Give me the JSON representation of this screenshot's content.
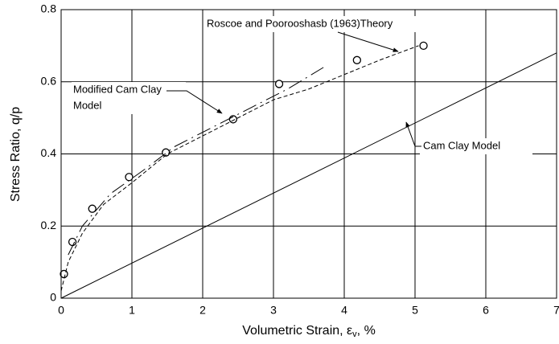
{
  "chart_data": {
    "type": "line",
    "x_label": [
      "Volumetric Strain, ε",
      "v",
      ", %"
    ],
    "y_label": "Stress Ratio, q/p",
    "xlim": [
      0,
      7
    ],
    "xticks": [
      0,
      1,
      2,
      3,
      4,
      5,
      6,
      7
    ],
    "ylim": [
      0,
      0.8
    ],
    "yticks": [
      0,
      0.2,
      0.4,
      0.6,
      0.8
    ],
    "grid": true,
    "color": "#000000",
    "series": [
      {
        "style": "markers",
        "x": [
          0.04,
          0.16,
          0.44,
          0.96,
          1.48,
          2.43,
          3.08,
          4.18,
          5.12
        ],
        "values": [
          0.067,
          0.156,
          0.248,
          0.336,
          0.404,
          0.496,
          0.594,
          0.66,
          0.7
        ]
      },
      {
        "style": "short-dash",
        "x": [
          0,
          0.1,
          0.3,
          0.6,
          1,
          1.5,
          2,
          2.5,
          3,
          3.5,
          4,
          4.5,
          5.05
        ],
        "values": [
          0.02,
          0.1,
          0.18,
          0.26,
          0.32,
          0.4,
          0.45,
          0.5,
          0.55,
          0.58,
          0.62,
          0.66,
          0.7
        ]
      },
      {
        "style": "long-dash",
        "x": [
          0.1,
          0.3,
          0.7,
          1.2,
          1.6,
          2.2,
          2.7,
          3.2,
          3.75
        ],
        "values": [
          0.12,
          0.2,
          0.29,
          0.36,
          0.42,
          0.48,
          0.53,
          0.58,
          0.645
        ]
      },
      {
        "style": "solid",
        "x": [
          0,
          7
        ],
        "values": [
          0,
          0.68
        ]
      }
    ],
    "annotations": [
      "Roscoe and Poorooshasb (1963)Theory",
      "Modified Cam Clay",
      "Model",
      "Cam Clay Model"
    ]
  }
}
